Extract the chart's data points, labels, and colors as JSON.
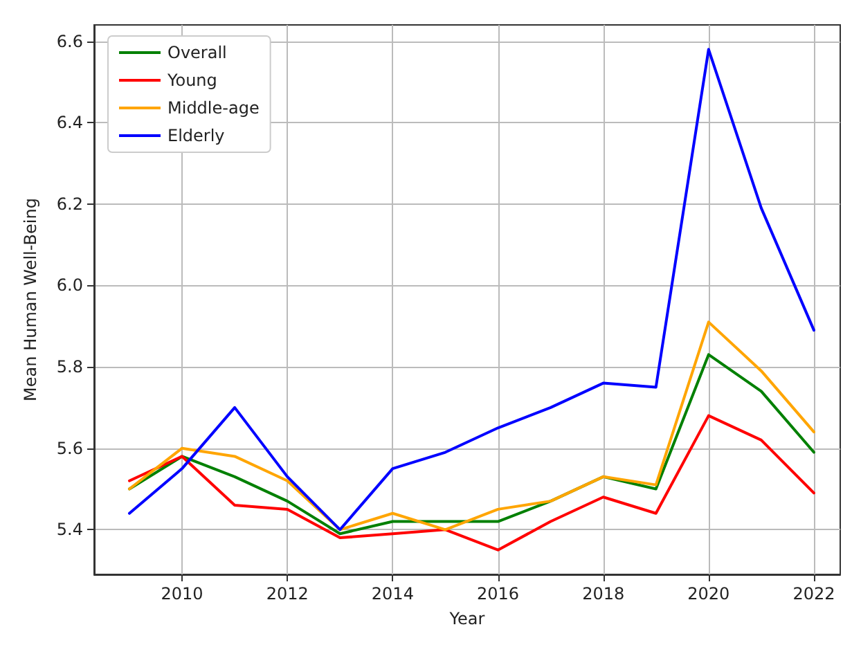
{
  "chart_data": {
    "type": "line",
    "xlabel": "Year",
    "ylabel": "Mean Human Well-Being",
    "x": [
      2009,
      2010,
      2011,
      2012,
      2013,
      2014,
      2015,
      2016,
      2017,
      2018,
      2019,
      2020,
      2021,
      2022
    ],
    "series": [
      {
        "name": "Overall",
        "color": "#008000",
        "values": [
          5.5,
          5.58,
          5.53,
          5.47,
          5.39,
          5.42,
          5.42,
          5.42,
          5.47,
          5.53,
          5.5,
          5.83,
          5.74,
          5.59
        ]
      },
      {
        "name": "Young",
        "color": "#ff0000",
        "values": [
          5.52,
          5.58,
          5.46,
          5.45,
          5.38,
          5.39,
          5.4,
          5.35,
          5.42,
          5.48,
          5.44,
          5.68,
          5.62,
          5.49
        ]
      },
      {
        "name": "Middle-age",
        "color": "#ffa500",
        "values": [
          5.5,
          5.6,
          5.58,
          5.52,
          5.4,
          5.44,
          5.4,
          5.45,
          5.47,
          5.53,
          5.51,
          5.91,
          5.79,
          5.64
        ]
      },
      {
        "name": "Elderly",
        "color": "#0000ff",
        "values": [
          5.44,
          5.55,
          5.7,
          5.53,
          5.4,
          5.55,
          5.59,
          5.65,
          5.7,
          5.76,
          5.75,
          6.58,
          6.19,
          5.89
        ]
      }
    ],
    "xlim": [
      2008.33,
      2022.5
    ],
    "xticks": [
      2010,
      2012,
      2014,
      2016,
      2018,
      2020,
      2022
    ],
    "ylim": [
      5.29,
      6.64
    ],
    "yticks": [
      5.4,
      5.6,
      5.8,
      {
        "value": 6,
        "label": "6.0"
      },
      6.2,
      6.4,
      6.6
    ],
    "grid": true,
    "legend": "top left",
    "marker": "none",
    "line_style": "solid"
  }
}
